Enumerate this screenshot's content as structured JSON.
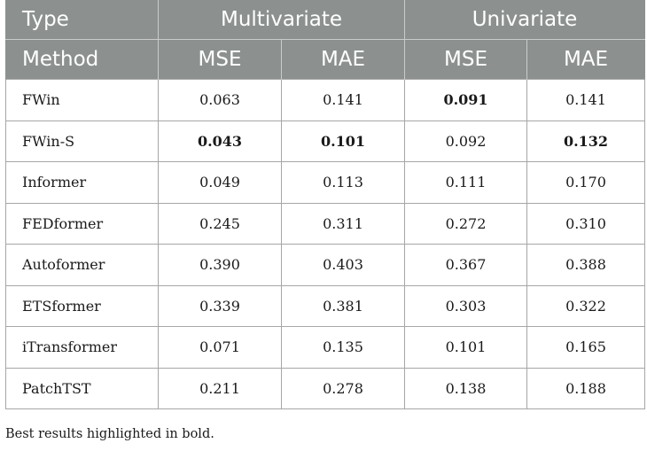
{
  "header": {
    "type_label": "Type",
    "multivariate_label": "Multivariate",
    "univariate_label": "Univariate",
    "method_label": "Method",
    "mse_label": "MSE",
    "mae_label": "MAE"
  },
  "rows": [
    {
      "method": "FWin",
      "m_mse": "0.063",
      "m_mae": "0.141",
      "u_mse": "0.091",
      "u_mae": "0.141",
      "bold": [
        false,
        false,
        true,
        false
      ]
    },
    {
      "method": "FWin-S",
      "m_mse": "0.043",
      "m_mae": "0.101",
      "u_mse": "0.092",
      "u_mae": "0.132",
      "bold": [
        true,
        true,
        false,
        true
      ]
    },
    {
      "method": "Informer",
      "m_mse": "0.049",
      "m_mae": "0.113",
      "u_mse": "0.111",
      "u_mae": "0.170",
      "bold": [
        false,
        false,
        false,
        false
      ]
    },
    {
      "method": "FEDformer",
      "m_mse": "0.245",
      "m_mae": "0.311",
      "u_mse": "0.272",
      "u_mae": "0.310",
      "bold": [
        false,
        false,
        false,
        false
      ]
    },
    {
      "method": "Autoformer",
      "m_mse": "0.390",
      "m_mae": "0.403",
      "u_mse": "0.367",
      "u_mae": "0.388",
      "bold": [
        false,
        false,
        false,
        false
      ]
    },
    {
      "method": "ETSformer",
      "m_mse": "0.339",
      "m_mae": "0.381",
      "u_mse": "0.303",
      "u_mae": "0.322",
      "bold": [
        false,
        false,
        false,
        false
      ]
    },
    {
      "method": "iTransformer",
      "m_mse": "0.071",
      "m_mae": "0.135",
      "u_mse": "0.101",
      "u_mae": "0.165",
      "bold": [
        false,
        false,
        false,
        false
      ]
    },
    {
      "method": "PatchTST",
      "m_mse": "0.211",
      "m_mae": "0.278",
      "u_mse": "0.138",
      "u_mae": "0.188",
      "bold": [
        false,
        false,
        false,
        false
      ]
    }
  ],
  "footnote": "Best results highlighted in bold.",
  "colors": {
    "header_bg": "#8c9190",
    "header_text": "#ffffff",
    "border": "#a6a6a6"
  }
}
